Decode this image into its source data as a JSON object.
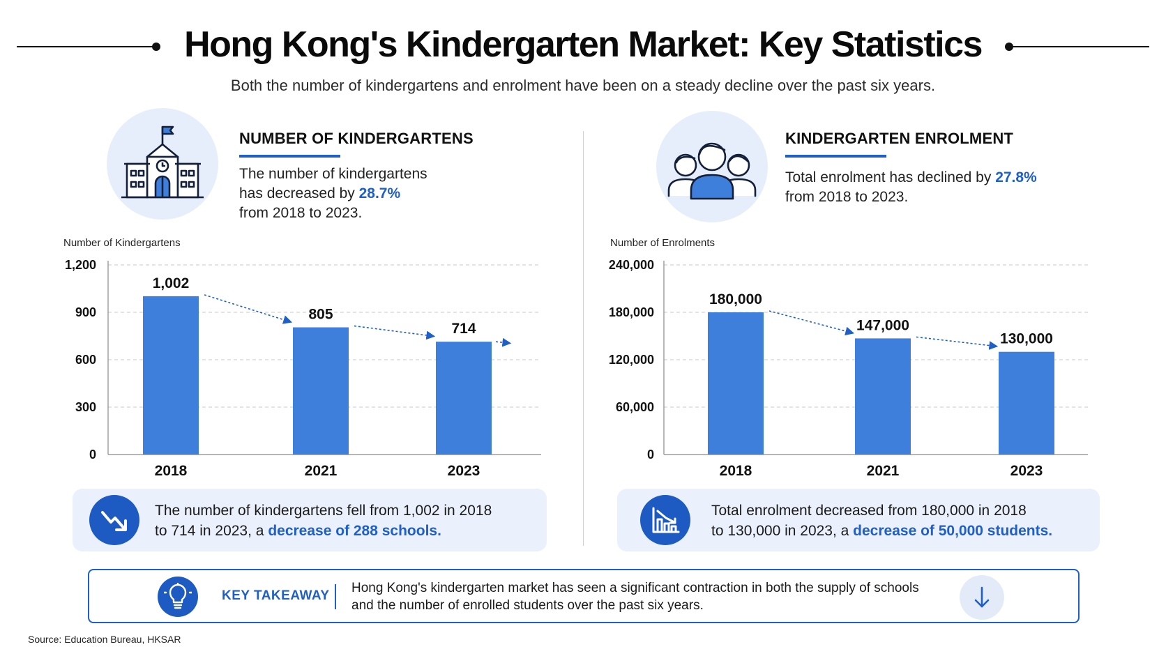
{
  "header": {
    "title": "Hong Kong's Kindergarten Market: Key Statistics",
    "subtitle": "Both the number of kindergartens and enrolment have been on a steady decline over the past six years."
  },
  "left_panel": {
    "icon": "school-building-icon",
    "heading": "NUMBER OF KINDERGARTENS",
    "desc_line1": "The number of kindergartens",
    "desc_line2_prefix": "has decreased by ",
    "desc_highlight": "28.7%",
    "desc_line3": "from 2018 to 2023.",
    "summary_icon": "trend-down-arrow-icon",
    "summary_line1": "The number of kindergartens fell from 1,002 in 2018",
    "summary_line2_prefix": "to 714 in 2023, a ",
    "summary_highlight": "decrease of 288 schools."
  },
  "right_panel": {
    "icon": "students-group-icon",
    "heading": "KINDERGARTEN ENROLMENT",
    "desc_line1_prefix": "Total enrolment has declined by ",
    "desc_highlight": "27.8%",
    "desc_line2": "from 2018 to 2023.",
    "summary_icon": "declining-bar-chart-icon",
    "summary_line1": "Total enrolment decreased from 180,000 in 2018",
    "summary_line2_prefix": "to 130,000 in 2023, a ",
    "summary_highlight": "decrease of 50,000 students."
  },
  "takeaway": {
    "icon": "lightbulb-icon",
    "label": "KEY TAKEAWAY",
    "line1": "Hong Kong's kindergarten market has seen a significant contraction in both the supply of schools",
    "line2": "and the number of enrolled students over the past six years.",
    "arrow_icon": "arrow-down-icon"
  },
  "source": "Source: Education Bureau, HKSAR",
  "colors": {
    "accent": "#1f5fc6",
    "bar": "#3f7fdc",
    "icon_bg": "#e6eefb",
    "summary_bg": "#eaf1fc"
  },
  "chart_data": [
    {
      "type": "bar",
      "title": "",
      "ylabel": "Number of Kindergartens",
      "xlabel": "",
      "categories": [
        "2018",
        "2021",
        "2023"
      ],
      "values": [
        1002,
        805,
        714
      ],
      "value_labels": [
        "1,002",
        "805",
        "714"
      ],
      "ylim": [
        0,
        1200
      ],
      "yticks": [
        0,
        300,
        600,
        900,
        1200
      ],
      "ytick_labels": [
        "0",
        "300",
        "600",
        "900",
        "1,200"
      ],
      "grid": true,
      "trend_arrow": true
    },
    {
      "type": "bar",
      "title": "",
      "ylabel": "Number of Enrolments",
      "xlabel": "",
      "categories": [
        "2018",
        "2021",
        "2023"
      ],
      "values": [
        180000,
        147000,
        130000
      ],
      "value_labels": [
        "180,000",
        "147,000",
        "130,000"
      ],
      "ylim": [
        0,
        240000
      ],
      "yticks": [
        0,
        60000,
        120000,
        180000,
        240000
      ],
      "ytick_labels": [
        "0",
        "60,000",
        "120,000",
        "180,000",
        "240,000"
      ],
      "grid": true,
      "trend_arrow": true
    }
  ]
}
